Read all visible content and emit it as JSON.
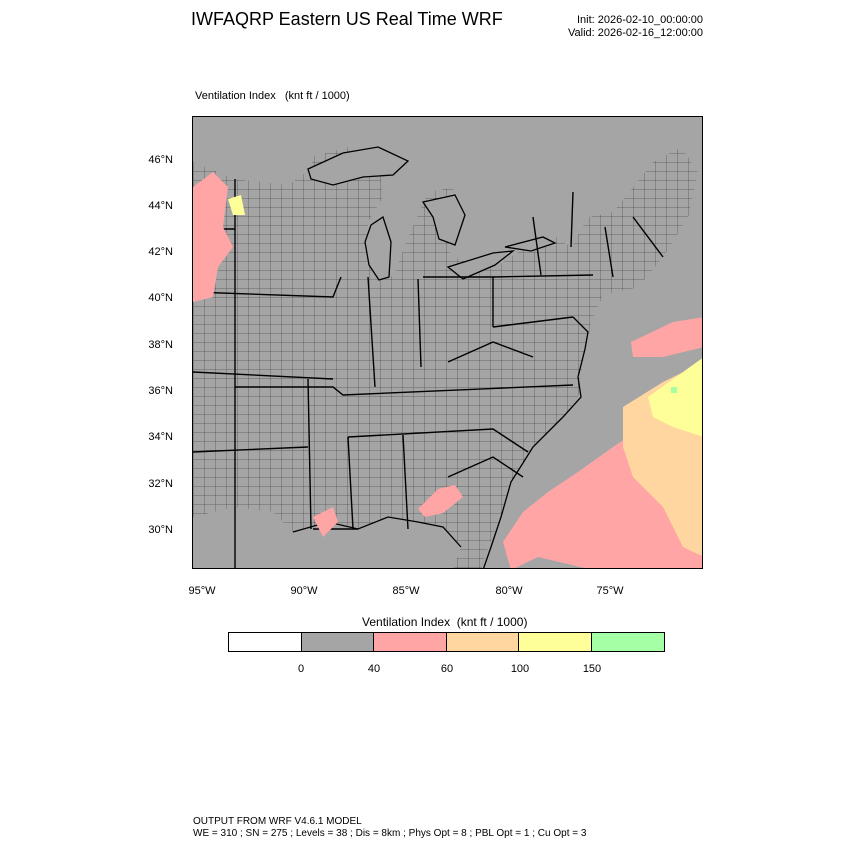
{
  "header": {
    "title": "IWFAQRP Eastern US Real Time WRF",
    "init": "Init: 2026-02-10_00:00:00",
    "valid": "Valid: 2026-02-16_12:00:00"
  },
  "plot": {
    "title": "Ventilation Index   (knt ft / 1000)",
    "lat_labels": [
      "46°N",
      "44°N",
      "42°N",
      "40°N",
      "38°N",
      "36°N",
      "34°N",
      "32°N",
      "30°N"
    ],
    "lon_labels": [
      "95°W",
      "90°W",
      "85°W",
      "80°W",
      "75°W"
    ]
  },
  "legend": {
    "title": "Ventilation Index  (knt ft / 1000)",
    "ticks": [
      "0",
      "40",
      "60",
      "100",
      "150"
    ],
    "colors": [
      "#ffffff",
      "#a5a5a5",
      "#ffa5a5",
      "#ffd6a0",
      "#ffff99",
      "#a5ffa5"
    ]
  },
  "colors": {
    "land_gray": "#a5a5a5",
    "pink": "#ffa5a5",
    "tan": "#ffd6a0",
    "yellow": "#ffff99",
    "green": "#a5ffa5"
  },
  "footer": {
    "line1": "OUTPUT FROM WRF V4.6.1 MODEL",
    "line2": "WE = 310 ; SN = 275 ; Levels = 38 ; Dis = 8km ; Phys Opt = 8 ; PBL Opt = 1 ; Cu Opt = 3"
  }
}
